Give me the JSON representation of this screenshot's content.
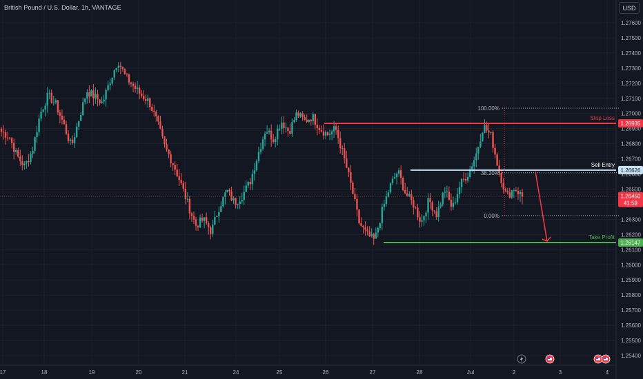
{
  "header": {
    "title": "British Pound / U.S. Dollar, 1h, VANTAGE",
    "currency_button": "USD"
  },
  "colors": {
    "background": "#131722",
    "up": "#26a69a",
    "down": "#ef5350",
    "stop_loss": "#f23645",
    "sell_entry": "#c9e3f7",
    "take_profit": "#4caf50",
    "grid": "#1e222d"
  },
  "annotations": {
    "stop_loss": "Stop Loss",
    "sell_entry": "Sell Entry",
    "take_profit": "Take Profit",
    "fib_100": "100.00%",
    "fib_382": "38.20%",
    "fib_0": "0.00%"
  },
  "price_tags": {
    "stop_loss": "1.26935",
    "sell_entry": "1.26626",
    "take_profit": "1.26147",
    "last_price": "1.26450",
    "countdown": "41:59"
  },
  "event_icons": [
    "lightning-event-icon",
    "us-flag-event-icon",
    "us-flag-event-icon",
    "us-flag-event-icon"
  ],
  "chart_data": {
    "type": "candlestick",
    "title": "British Pound / U.S. Dollar, 1h, VANTAGE",
    "y_axis_ticks": [
      "1.27600",
      "1.27500",
      "1.27400",
      "1.27300",
      "1.27200",
      "1.27100",
      "1.27000",
      "1.26900",
      "1.26800",
      "1.26700",
      "1.26600",
      "1.26500",
      "1.26400",
      "1.26300",
      "1.26200",
      "1.26100",
      "1.26000",
      "1.25900",
      "1.25800",
      "1.25700",
      "1.25600",
      "1.25500",
      "1.25400"
    ],
    "x_axis_ticks": [
      "17",
      "18",
      "19",
      "20",
      "21",
      "24",
      "25",
      "26",
      "27",
      "28",
      "Jul",
      "2",
      "3",
      "4"
    ],
    "ylim": [
      1.2535,
      1.278
    ],
    "levels": {
      "stop_loss": 1.26935,
      "sell_entry": 1.26626,
      "take_profit": 1.26147,
      "fib_100": 1.27035,
      "fib_382": 1.26608,
      "fib_0": 1.26325
    },
    "close_path": [
      1.2688,
      1.2685,
      1.2672,
      1.2665,
      1.2676,
      1.27,
      1.2712,
      1.2706,
      1.2693,
      1.2678,
      1.2697,
      1.2715,
      1.2711,
      1.2707,
      1.2722,
      1.2735,
      1.2724,
      1.2718,
      1.2712,
      1.2708,
      1.2695,
      1.2678,
      1.2668,
      1.2655,
      1.264,
      1.2626,
      1.263,
      1.2622,
      1.2638,
      1.2649,
      1.2641,
      1.2646,
      1.2655,
      1.2673,
      1.269,
      1.2683,
      1.2695,
      1.2688,
      1.27,
      1.2695,
      1.2698,
      1.269,
      1.2686,
      1.269,
      1.2672,
      1.2652,
      1.2628,
      1.262,
      1.2616,
      1.2636,
      1.2652,
      1.2662,
      1.2647,
      1.264,
      1.2628,
      1.2643,
      1.2633,
      1.265,
      1.2637,
      1.2653,
      1.266,
      1.2672,
      1.2692,
      1.2685,
      1.2662,
      1.2645,
      1.2651,
      1.2645
    ],
    "last_price": 1.2645
  }
}
